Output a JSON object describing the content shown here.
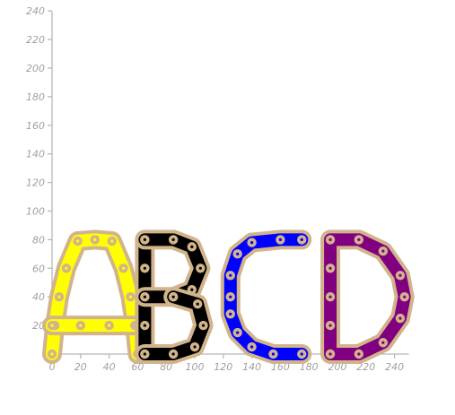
{
  "chart_data": {
    "type": "scatter",
    "title": "",
    "xlabel": "",
    "ylabel": "",
    "xlim": [
      0,
      250
    ],
    "ylim": [
      0,
      240
    ],
    "x_ticks": [
      0,
      20,
      40,
      60,
      80,
      100,
      120,
      140,
      160,
      180,
      200,
      220,
      240
    ],
    "y_ticks": [
      20,
      40,
      60,
      80,
      100,
      120,
      140,
      160,
      180,
      200,
      220,
      240
    ],
    "grid": false,
    "link_outline_color": "#d2b48c",
    "link_pin_color": "#d2b48c",
    "series": [
      {
        "letter": "A",
        "color": "#ffff00",
        "strokes": [
          [
            [
              0,
              0
            ],
            [
              2,
              20
            ],
            [
              5,
              40
            ],
            [
              10,
              60
            ],
            [
              18,
              79
            ],
            [
              30,
              80
            ],
            [
              42,
              79
            ],
            [
              50,
              60
            ],
            [
              55,
              40
            ],
            [
              58,
              20
            ],
            [
              60,
              0
            ]
          ],
          [
            [
              0,
              20
            ],
            [
              20,
              20
            ],
            [
              40,
              20
            ],
            [
              60,
              20
            ]
          ]
        ]
      },
      {
        "letter": "B",
        "color": "#000000",
        "strokes": [
          [
            [
              65,
              0
            ],
            [
              65,
              20
            ],
            [
              65,
              40
            ],
            [
              65,
              60
            ],
            [
              65,
              80
            ]
          ],
          [
            [
              65,
              80
            ],
            [
              85,
              80
            ],
            [
              98,
              75
            ],
            [
              104,
              60
            ],
            [
              98,
              45
            ],
            [
              85,
              40
            ],
            [
              65,
              40
            ]
          ],
          [
            [
              85,
              40
            ],
            [
              102,
              35
            ],
            [
              106,
              20
            ],
            [
              100,
              5
            ],
            [
              85,
              0
            ],
            [
              65,
              0
            ]
          ]
        ]
      },
      {
        "letter": "C",
        "color": "#0000ff",
        "strokes": [
          [
            [
              175,
              80
            ],
            [
              160,
              80
            ],
            [
              140,
              78
            ],
            [
              130,
              70
            ],
            [
              125,
              55
            ],
            [
              125,
              40
            ],
            [
              125,
              28
            ],
            [
              130,
              15
            ],
            [
              140,
              5
            ],
            [
              155,
              0
            ],
            [
              175,
              0
            ]
          ]
        ]
      },
      {
        "letter": "D",
        "color": "#800080",
        "strokes": [
          [
            [
              195,
              0
            ],
            [
              195,
              20
            ],
            [
              195,
              40
            ],
            [
              195,
              60
            ],
            [
              195,
              80
            ],
            [
              215,
              80
            ],
            [
              232,
              72
            ],
            [
              244,
              55
            ],
            [
              247,
              40
            ],
            [
              244,
              25
            ],
            [
              232,
              8
            ],
            [
              215,
              0
            ],
            [
              195,
              0
            ]
          ]
        ]
      }
    ]
  }
}
